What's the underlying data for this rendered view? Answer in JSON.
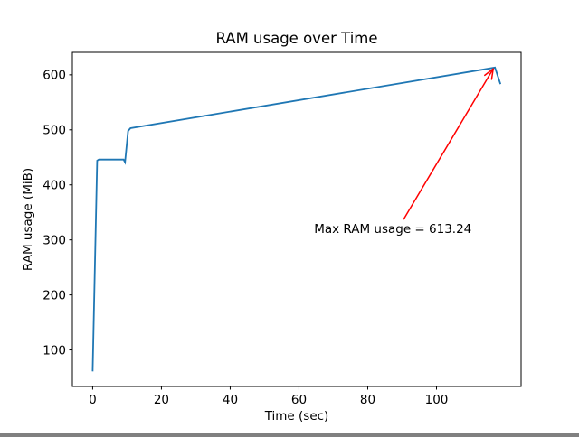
{
  "figure": {
    "background": "#ffffff",
    "spine_color": "#000000"
  },
  "chart_data": {
    "type": "line",
    "title": "RAM usage over Time",
    "xlabel": "Time (sec)",
    "ylabel": "RAM usage (MiB)",
    "xlim": [
      -5.9,
      124.6
    ],
    "ylim": [
      33.6,
      640.8
    ],
    "xticks": [
      0,
      20,
      40,
      60,
      80,
      100
    ],
    "yticks": [
      100,
      200,
      300,
      400,
      500,
      600
    ],
    "grid": false,
    "legend": "none",
    "series": [
      {
        "name": "RAM usage",
        "color": "#1f77b4",
        "points": [
          [
            0,
            61
          ],
          [
            1.3,
            444
          ],
          [
            1.8,
            446
          ],
          [
            9.0,
            446
          ],
          [
            9.4,
            441
          ],
          [
            10.3,
            498
          ],
          [
            11.0,
            503
          ],
          [
            117.0,
            613.24
          ],
          [
            118.6,
            583
          ]
        ]
      }
    ],
    "max_value": 613.24,
    "annotation": {
      "text": "Max RAM usage = 613.24",
      "color": "#ff0000",
      "text_pos": [
        64.4,
        312.5
      ],
      "arrow_tail": [
        90.4,
        337
      ],
      "arrow_tip": [
        116.5,
        611
      ]
    }
  }
}
